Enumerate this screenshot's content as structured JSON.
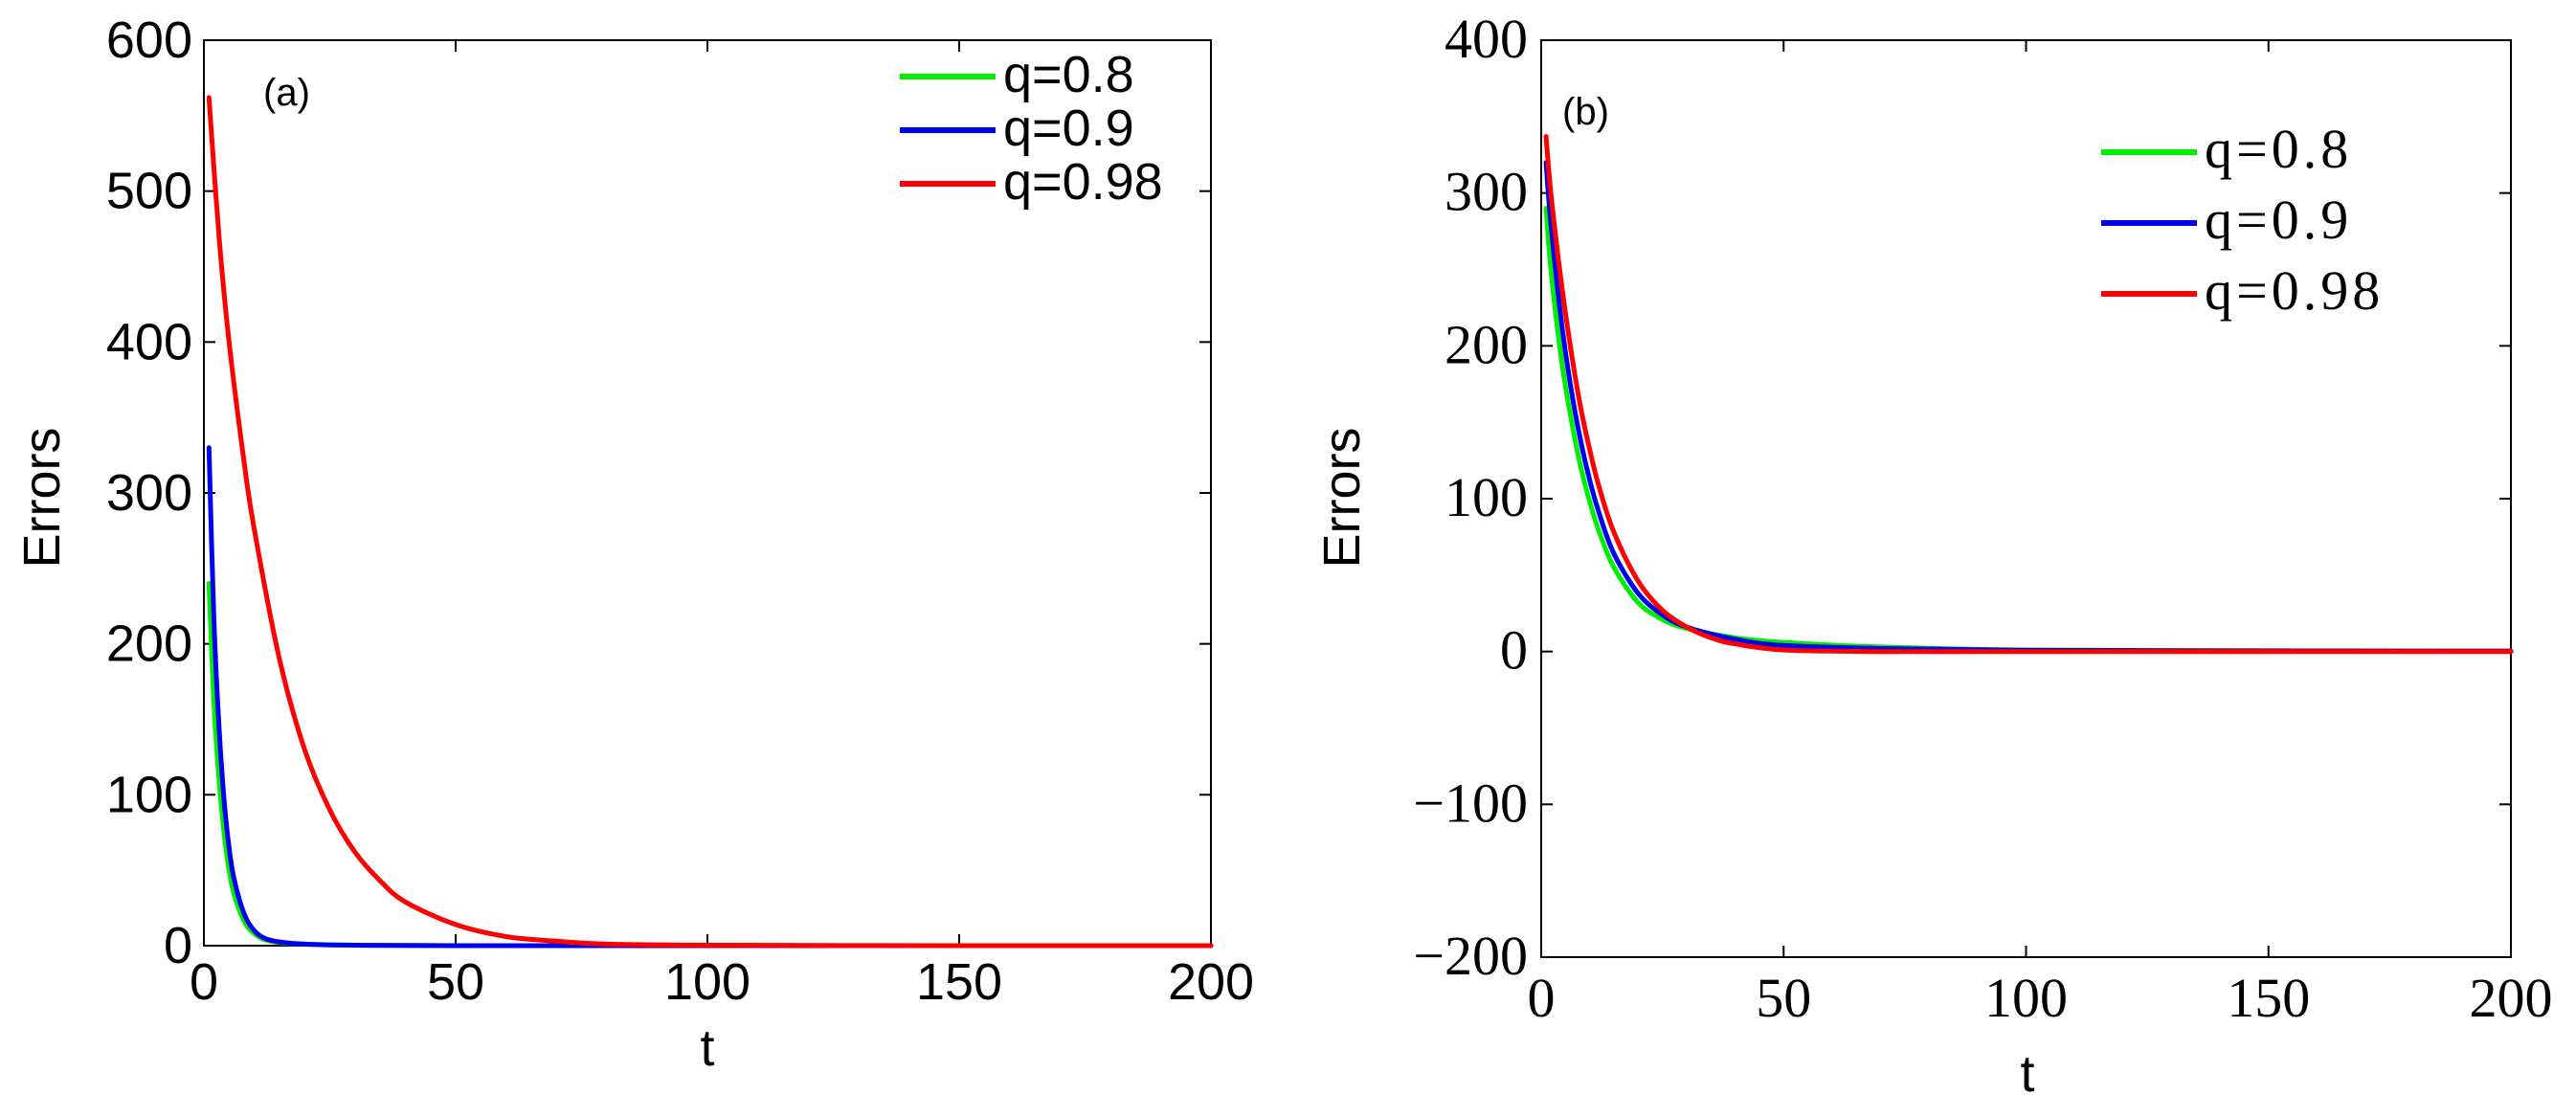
{
  "chart_data": [
    {
      "type": "line",
      "panel_label": "(a)",
      "title": "",
      "xlabel": "t",
      "ylabel": "Errors",
      "xlim": [
        0,
        200
      ],
      "ylim": [
        0,
        600
      ],
      "xticks": [
        0,
        50,
        100,
        150,
        200
      ],
      "xtick_labels": [
        "0",
        "50",
        "100",
        "150",
        "200"
      ],
      "yticks": [
        0,
        100,
        200,
        300,
        400,
        500,
        600
      ],
      "ytick_labels": [
        "0",
        "100",
        "200",
        "300",
        "400",
        "500",
        "600"
      ],
      "grid": false,
      "legend_position": "top-right",
      "series": [
        {
          "name": "q=0.8",
          "color": "#00ee00",
          "x": [
            1,
            2,
            3,
            4,
            5,
            6,
            8,
            10,
            12,
            15,
            20,
            30,
            50,
            100,
            200
          ],
          "y": [
            240,
            160,
            110,
            75,
            50,
            34,
            16,
            8,
            4,
            2,
            1,
            0.3,
            0,
            0,
            0
          ]
        },
        {
          "name": "q=0.9",
          "color": "#0000ee",
          "x": [
            1,
            2,
            3,
            4,
            5,
            6,
            8,
            10,
            12,
            15,
            20,
            30,
            50,
            100,
            200
          ],
          "y": [
            330,
            215,
            145,
            97,
            65,
            44,
            21,
            10,
            5,
            2.5,
            1,
            0.3,
            0,
            0,
            0
          ]
        },
        {
          "name": "q=0.98",
          "color": "#ff0000",
          "x": [
            1,
            3,
            5,
            8,
            10,
            15,
            20,
            25,
            30,
            35,
            40,
            50,
            60,
            70,
            80,
            100,
            150,
            200
          ],
          "y": [
            562,
            470,
            400,
            320,
            276,
            190,
            130,
            90,
            62,
            43,
            29,
            14,
            6,
            3,
            1,
            0.3,
            0,
            0
          ]
        }
      ]
    },
    {
      "type": "line",
      "panel_label": "(b)",
      "title": "",
      "xlabel": "t",
      "ylabel": "Errors",
      "xlim": [
        0,
        200
      ],
      "ylim": [
        -200,
        400
      ],
      "xticks": [
        0,
        50,
        100,
        150,
        200
      ],
      "xtick_labels": [
        "0",
        "50",
        "100",
        "150",
        "200"
      ],
      "yticks": [
        -200,
        -100,
        0,
        100,
        200,
        300,
        400
      ],
      "ytick_labels": [
        "−200",
        "−100",
        "0",
        "100",
        "200",
        "300",
        "400"
      ],
      "grid": false,
      "legend_position": "top-right",
      "series": [
        {
          "name": "q=0.8",
          "color": "#00ee00",
          "x": [
            1,
            2,
            4,
            6,
            8,
            10,
            12,
            15,
            20,
            25,
            30,
            40,
            50,
            70,
            100,
            150,
            200
          ],
          "y": [
            290,
            250,
            195,
            155,
            123,
            98,
            78,
            55,
            32,
            21,
            15,
            9,
            6,
            3,
            1,
            0.5,
            0.3
          ]
        },
        {
          "name": "q=0.9",
          "color": "#0000ee",
          "x": [
            1,
            2,
            4,
            6,
            8,
            10,
            12,
            15,
            20,
            25,
            30,
            40,
            50,
            70,
            100,
            150,
            200
          ],
          "y": [
            320,
            280,
            220,
            175,
            140,
            112,
            90,
            64,
            38,
            24,
            16,
            8,
            4,
            2,
            0.8,
            0.4,
            0.2
          ]
        },
        {
          "name": "q=0.98",
          "color": "#ff0000",
          "x": [
            1,
            2,
            4,
            6,
            8,
            10,
            12,
            15,
            20,
            25,
            30,
            35,
            40,
            50,
            70,
            100,
            150,
            200
          ],
          "y": [
            337,
            300,
            245,
            200,
            162,
            132,
            107,
            78,
            46,
            27,
            16,
            9,
            5,
            1,
            0,
            0,
            0,
            0
          ]
        }
      ]
    }
  ]
}
